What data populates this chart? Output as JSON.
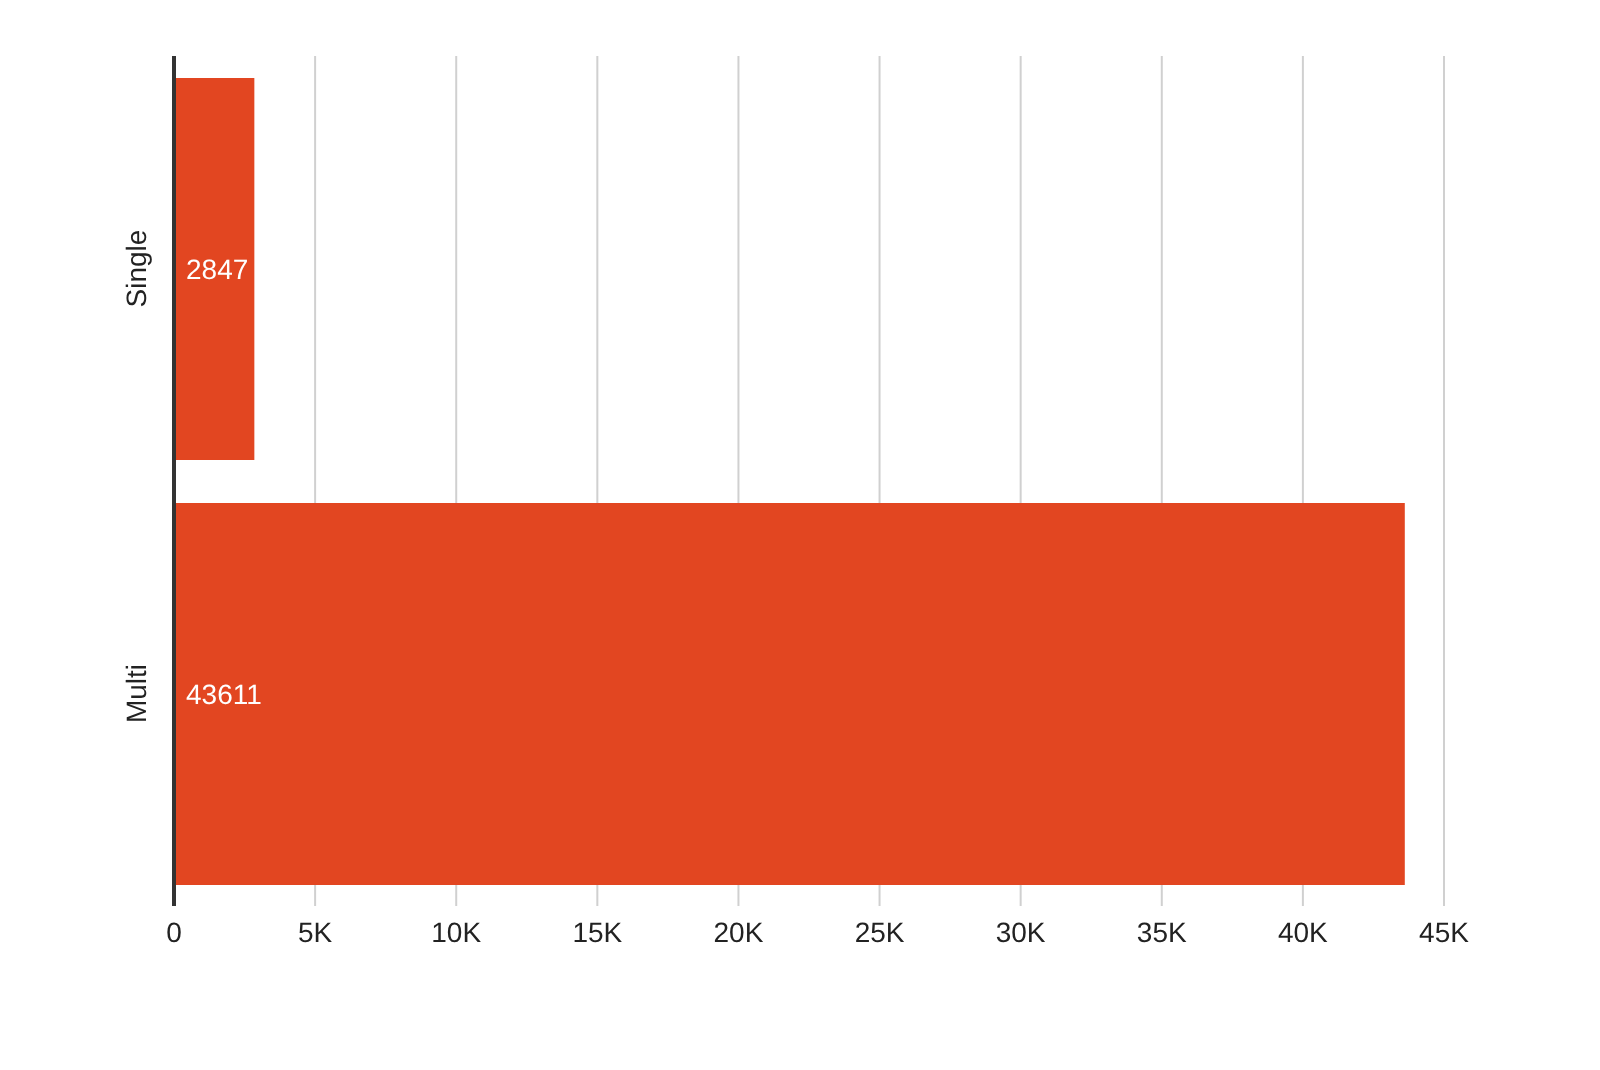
{
  "chart_data": {
    "type": "bar",
    "orientation": "horizontal",
    "categories": [
      "Single",
      "Multi"
    ],
    "values": [
      2847,
      43611
    ],
    "color": "#e24621",
    "xlim": [
      0,
      45000
    ],
    "xticks": [
      0,
      {
        "value": 5000,
        "label": "5K"
      },
      {
        "value": 10000,
        "label": "10K"
      },
      {
        "value": 15000,
        "label": "15K"
      },
      {
        "value": 20000,
        "label": "20K"
      },
      {
        "value": 25000,
        "label": "25K"
      },
      {
        "value": 30000,
        "label": "30K"
      },
      {
        "value": 35000,
        "label": "35K"
      },
      {
        "value": 40000,
        "label": "40K"
      },
      {
        "value": 45000,
        "label": "45K"
      }
    ],
    "grid": "x",
    "data_labels": true,
    "legend": false
  }
}
